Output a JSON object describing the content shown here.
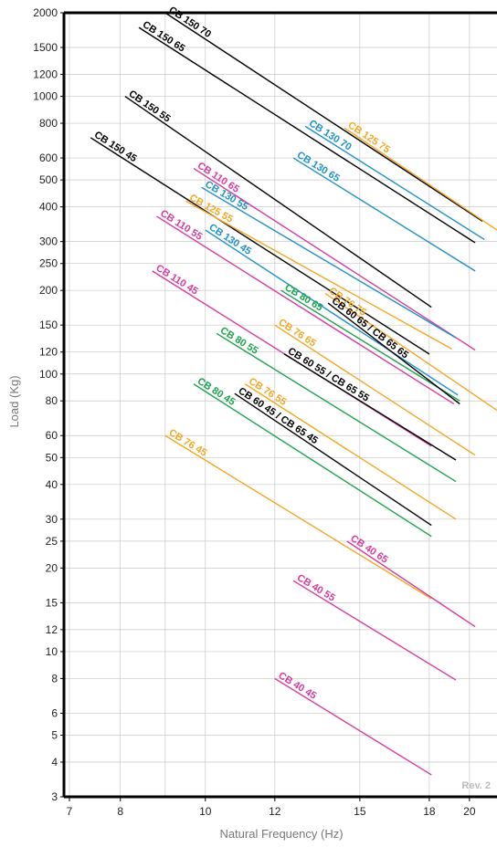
{
  "chart_data": {
    "type": "line",
    "xlabel": "Natural Frequency (Hz)",
    "ylabel": "Load (Kg)",
    "x_scale": "log",
    "y_scale": "log",
    "xlim": [
      6.9,
      21.5
    ],
    "ylim": [
      3,
      2000
    ],
    "grid": true,
    "x_ticks": [
      7,
      8,
      10,
      12,
      15,
      18,
      20
    ],
    "x_tick_labels": [
      "7",
      "8",
      "10",
      "12",
      "15",
      "18",
      "20"
    ],
    "x_minor_ticks": [
      9
    ],
    "y_ticks": [
      3,
      4,
      5,
      6,
      8,
      10,
      12,
      15,
      20,
      25,
      30,
      40,
      50,
      60,
      80,
      100,
      120,
      150,
      200,
      250,
      300,
      400,
      500,
      600,
      800,
      1000,
      1200,
      1500,
      2000
    ],
    "y_tick_labels": [
      "3",
      "4",
      "5",
      "6",
      "8",
      "10",
      "12",
      "15",
      "20",
      "25",
      "30",
      "40",
      "50",
      "60",
      "80",
      "100",
      "120",
      "150",
      "200",
      "250",
      "300",
      "400",
      "500",
      "600",
      "800",
      "1000",
      "1200",
      "1500",
      "2000"
    ],
    "annotation": "Rev. 2",
    "colors": {
      "black": "#000000",
      "orange": "#f5a623",
      "blue": "#1e90c8",
      "magenta": "#d63a9e",
      "green": "#1aa34a"
    },
    "series": [
      {
        "name": "CB 150 70",
        "color": "#000000",
        "x": [
          9.0,
          20.7
        ],
        "y": [
          2000,
          355
        ]
      },
      {
        "name": "CB 150 65",
        "color": "#000000",
        "x": [
          8.4,
          20.3
        ],
        "y": [
          1770,
          297
        ]
      },
      {
        "name": "CB 150 55",
        "color": "#000000",
        "x": [
          8.1,
          18.1
        ],
        "y": [
          1000,
          174
        ]
      },
      {
        "name": "CB 150 45",
        "color": "#000000",
        "x": [
          7.4,
          18.0
        ],
        "y": [
          710,
          118
        ]
      },
      {
        "name": "CB 125 75",
        "color": "#f5a623",
        "x": [
          14.4,
          21.5
        ],
        "y": [
          770,
          330
        ]
      },
      {
        "name": "CB 130 70",
        "color": "#1e90c8",
        "x": [
          13.0,
          20.8
        ],
        "y": [
          780,
          305
        ]
      },
      {
        "name": "CB 130 65",
        "color": "#1e90c8",
        "x": [
          12.6,
          20.3
        ],
        "y": [
          600,
          235
        ]
      },
      {
        "name": "CB 110 65",
        "color": "#d63a9e",
        "x": [
          9.7,
          20.3
        ],
        "y": [
          550,
          122
        ]
      },
      {
        "name": "CB 130 55",
        "color": "#1e90c8",
        "x": [
          9.9,
          19.3
        ],
        "y": [
          470,
          135
        ]
      },
      {
        "name": "CB 125 55",
        "color": "#f5a623",
        "x": [
          9.5,
          19.1
        ],
        "y": [
          420,
          123
        ]
      },
      {
        "name": "CB 130 45",
        "color": "#1e90c8",
        "x": [
          10.0,
          19.4
        ],
        "y": [
          330,
          84
        ]
      },
      {
        "name": "CB 110 55",
        "color": "#d63a9e",
        "x": [
          8.8,
          19.2
        ],
        "y": [
          370,
          78
        ]
      },
      {
        "name": "CB 110 45",
        "color": "#d63a9e",
        "x": [
          8.7,
          18.1
        ],
        "y": [
          235,
          55
        ]
      },
      {
        "name": "CB 80 65",
        "color": "#1aa34a",
        "x": [
          12.2,
          19.5
        ],
        "y": [
          200,
          80
        ]
      },
      {
        "name": "CB 76 75",
        "color": "#f5a623",
        "x": [
          13.7,
          21.5
        ],
        "y": [
          195,
          74
        ]
      },
      {
        "name": "CB 60 65 / CB 65 65",
        "color": "#000000",
        "x": [
          13.8,
          19.5
        ],
        "y": [
          180,
          78
        ]
      },
      {
        "name": "CB 76 65",
        "color": "#f5a623",
        "x": [
          12.0,
          20.3
        ],
        "y": [
          150,
          51
        ]
      },
      {
        "name": "CB 60 55 / CB 65 55",
        "color": "#000000",
        "x": [
          12.3,
          19.3
        ],
        "y": [
          118,
          49
        ]
      },
      {
        "name": "CB 80 55",
        "color": "#1aa34a",
        "x": [
          10.3,
          19.3
        ],
        "y": [
          140,
          41
        ]
      },
      {
        "name": "CB 76 55",
        "color": "#f5a623",
        "x": [
          11.1,
          19.3
        ],
        "y": [
          92,
          30
        ]
      },
      {
        "name": "CB 80 45",
        "color": "#1aa34a",
        "x": [
          9.7,
          18.1
        ],
        "y": [
          92,
          26
        ]
      },
      {
        "name": "CB 60 45 / CB 65 45",
        "color": "#000000",
        "x": [
          10.8,
          18.1
        ],
        "y": [
          85,
          28.5
        ]
      },
      {
        "name": "CB 76 45",
        "color": "#f5a623",
        "x": [
          9.0,
          18.1
        ],
        "y": [
          60,
          15.5
        ]
      },
      {
        "name": "CB 40 65",
        "color": "#d63a9e",
        "x": [
          14.5,
          20.3
        ],
        "y": [
          25,
          12.3
        ]
      },
      {
        "name": "CB 40 55",
        "color": "#d63a9e",
        "x": [
          12.6,
          19.3
        ],
        "y": [
          18,
          7.9
        ]
      },
      {
        "name": "CB 40 45",
        "color": "#d63a9e",
        "x": [
          12.0,
          18.1
        ],
        "y": [
          8,
          3.6
        ]
      }
    ]
  }
}
